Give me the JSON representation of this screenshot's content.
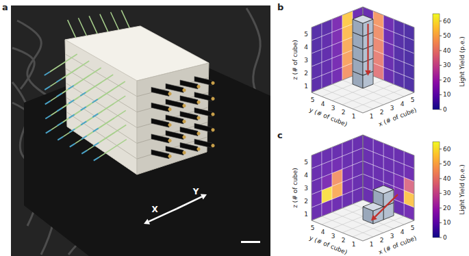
{
  "panel_labels": [
    "a",
    "b",
    "c"
  ],
  "photo": {
    "axis_labels": {
      "x": "X",
      "y": "Y"
    }
  },
  "chart_data": [
    {
      "type": "voxel_projection",
      "xlabel": "x (# of cube)",
      "ylabel": "y (# of cube)",
      "zlabel": "z (# of cube)",
      "xlim": [
        0.5,
        5.5
      ],
      "ylim": [
        0.5,
        5.5
      ],
      "zlim": [
        0.5,
        5.5
      ],
      "xticks": [
        1,
        2,
        3,
        4,
        5
      ],
      "yticks": [
        1,
        2,
        3,
        4,
        5
      ],
      "zticks": [
        1,
        2,
        3,
        4,
        5
      ],
      "xz_light_yield": [
        [
          6,
          7,
          10,
          45,
          8
        ],
        [
          6,
          7,
          11,
          48,
          8
        ],
        [
          5,
          7,
          11,
          50,
          8
        ],
        [
          5,
          7,
          12,
          53,
          9
        ],
        [
          5,
          6,
          12,
          56,
          9
        ]
      ],
      "yz_light_yield": [
        [
          4,
          5,
          8,
          38,
          7
        ],
        [
          4,
          5,
          8,
          40,
          7
        ],
        [
          4,
          5,
          9,
          42,
          7
        ],
        [
          4,
          5,
          9,
          44,
          8
        ],
        [
          4,
          5,
          9,
          46,
          8
        ]
      ],
      "cubes": [
        [
          4,
          4,
          1
        ],
        [
          4,
          4,
          2
        ],
        [
          4,
          4,
          3
        ],
        [
          4,
          4,
          4
        ],
        [
          4,
          4,
          5
        ]
      ],
      "track": {
        "from": [
          4,
          3.5,
          5.3
        ],
        "to": [
          4,
          3.5,
          1.3
        ]
      },
      "colorbar": {
        "label": "Light Yield (p.e.)",
        "range": [
          0,
          65
        ],
        "ticks": [
          0,
          10,
          20,
          30,
          40,
          50,
          60
        ]
      }
    },
    {
      "type": "voxel_projection",
      "xlabel": "x (# of cube)",
      "ylabel": "y (# of cube)",
      "zlabel": "z (# of cube)",
      "xlim": [
        0.5,
        5.5
      ],
      "ylim": [
        0.5,
        5.5
      ],
      "zlim": [
        0.5,
        5.5
      ],
      "xticks": [
        1,
        2,
        3,
        4,
        5
      ],
      "yticks": [
        1,
        2,
        3,
        4,
        5
      ],
      "zticks": [
        1,
        2,
        3,
        4,
        5
      ],
      "xz_light_yield": [
        [
          8,
          10,
          9,
          8,
          8
        ],
        [
          9,
          60,
          50,
          10,
          8
        ],
        [
          8,
          12,
          45,
          10,
          8
        ],
        [
          8,
          9,
          10,
          8,
          8
        ],
        [
          8,
          8,
          8,
          8,
          8
        ]
      ],
      "yz_light_yield": [
        [
          10,
          8,
          8,
          8,
          8
        ],
        [
          55,
          12,
          9,
          8,
          8
        ],
        [
          35,
          10,
          8,
          8,
          8
        ],
        [
          9,
          8,
          8,
          8,
          8
        ],
        [
          8,
          8,
          8,
          8,
          8
        ]
      ],
      "cubes": [
        [
          2,
          1,
          2
        ],
        [
          3,
          1,
          2
        ],
        [
          3,
          1,
          3
        ]
      ],
      "track": {
        "from": [
          3.9,
          0.5,
          3.0
        ],
        "to": [
          1.3,
          0.5,
          1.8
        ]
      },
      "colorbar": {
        "label": "Light Yield (p.e.)",
        "range": [
          0,
          65
        ],
        "ticks": [
          0,
          10,
          20,
          30,
          40,
          50,
          60
        ]
      }
    }
  ]
}
